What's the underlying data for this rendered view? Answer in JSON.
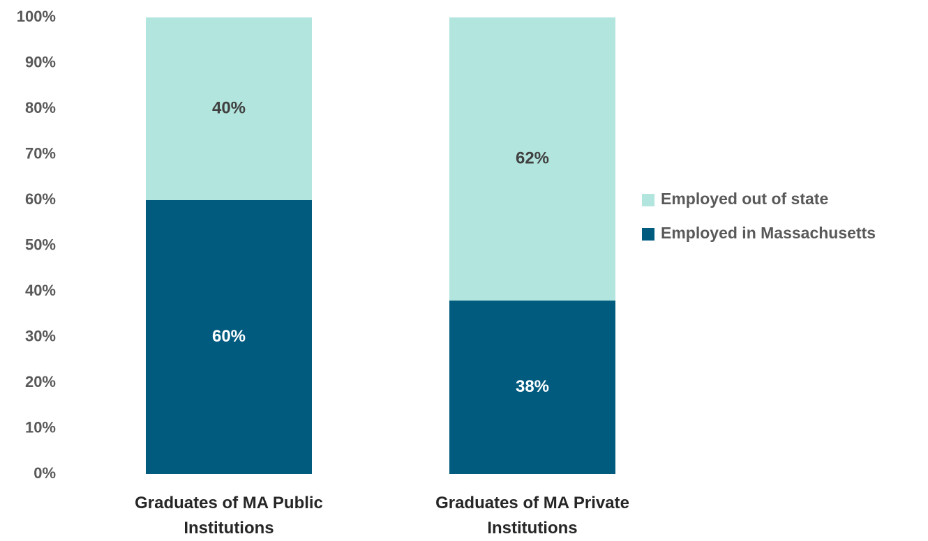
{
  "chart_data": {
    "type": "stacked_bar",
    "categories": [
      "Graduates of MA Public Institutions",
      "Graduates of MA Private Institutions"
    ],
    "series": [
      {
        "name": "Employed in Massachusetts",
        "color": "#005b7f",
        "values": [
          60,
          38
        ],
        "value_labels": [
          "60%",
          "38%"
        ]
      },
      {
        "name": "Employed out of state",
        "color": "#b2e5dd",
        "values": [
          40,
          62
        ],
        "value_labels": [
          "40%",
          "62%"
        ]
      }
    ],
    "ylim": [
      0,
      100
    ],
    "yticks": [
      {
        "value": 0,
        "label": "0%"
      },
      {
        "value": 10,
        "label": "10%"
      },
      {
        "value": 20,
        "label": "20%"
      },
      {
        "value": 30,
        "label": "30%"
      },
      {
        "value": 40,
        "label": "40%"
      },
      {
        "value": 50,
        "label": "50%"
      },
      {
        "value": 60,
        "label": "60%"
      },
      {
        "value": 70,
        "label": "70%"
      },
      {
        "value": 80,
        "label": "80%"
      },
      {
        "value": 90,
        "label": "90%"
      },
      {
        "value": 100,
        "label": "100%"
      }
    ],
    "grid": false,
    "legend": "right"
  }
}
